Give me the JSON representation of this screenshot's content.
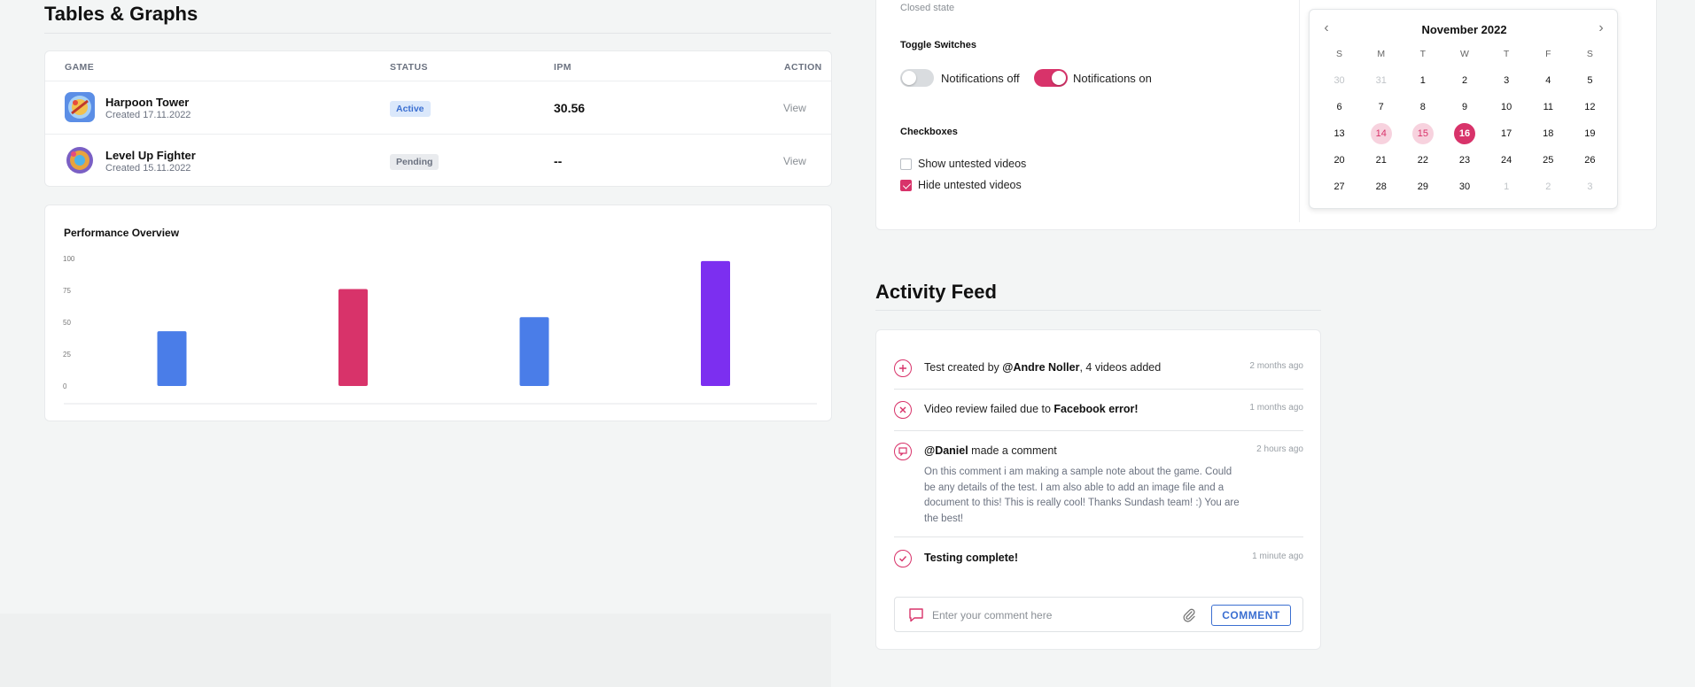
{
  "left": {
    "title": "Tables & Graphs",
    "table": {
      "headers": [
        "GAME",
        "STATUS",
        "IPM",
        "ACTION"
      ],
      "rows": [
        {
          "name": "Harpoon Tower",
          "created": "Created 17.11.2022",
          "status": "Active",
          "ipm": "30.56",
          "action": "View"
        },
        {
          "name": "Level Up Fighter",
          "created": "Created 15.11.2022",
          "status": "Pending",
          "ipm": "--",
          "action": "View"
        }
      ]
    },
    "performance": {
      "title": "Performance Overview"
    }
  },
  "chart_data": {
    "type": "bar",
    "title": "Performance Overview",
    "categories": [
      "",
      "",
      "",
      ""
    ],
    "values": [
      43,
      76,
      54,
      98
    ],
    "colors": [
      "#4a7de8",
      "#d8336a",
      "#4a7de8",
      "#7c2ff0"
    ],
    "yticks": [
      "100",
      "75",
      "50",
      "25",
      "0"
    ],
    "ylim": [
      0,
      100
    ],
    "grid": false
  },
  "controls": {
    "closed_state_label": "Closed state",
    "toggle_title": "Toggle Switches",
    "toggles": [
      {
        "label": "Notifications off",
        "on": false
      },
      {
        "label": "Notifications on",
        "on": true
      }
    ],
    "checkbox_title": "Checkboxes",
    "checkboxes": [
      {
        "label": "Show untested videos",
        "checked": false
      },
      {
        "label": "Hide untested videos",
        "checked": true
      }
    ]
  },
  "calendar": {
    "month": "November 2022",
    "dow": [
      "S",
      "M",
      "T",
      "W",
      "T",
      "F",
      "S"
    ],
    "weeks": [
      [
        "30",
        "31",
        "1",
        "2",
        "3",
        "4",
        "5"
      ],
      [
        "6",
        "7",
        "8",
        "9",
        "10",
        "11",
        "12"
      ],
      [
        "13",
        "14",
        "15",
        "16",
        "17",
        "18",
        "19"
      ],
      [
        "20",
        "21",
        "22",
        "23",
        "24",
        "25",
        "26"
      ],
      [
        "27",
        "28",
        "29",
        "30",
        "1",
        "2",
        "3"
      ]
    ],
    "muted": [
      "0-0",
      "0-1",
      "4-4",
      "4-5",
      "4-6"
    ],
    "range": [
      "2-1",
      "2-2"
    ],
    "selected": "2-3"
  },
  "feed": {
    "title": "Activity Feed",
    "items": [
      {
        "pre": "Test created by ",
        "bold": "@Andre Noller",
        "post": ", 4 videos added",
        "time": "2 months ago",
        "icon": "plus-icon"
      },
      {
        "pre": "Video review failed due to ",
        "bold": "Facebook error!",
        "post": "",
        "time": "1 months ago",
        "icon": "x-icon"
      },
      {
        "pre": "",
        "bold": "@Daniel",
        "post": " made a comment",
        "time": "2 hours ago",
        "icon": "comment-icon",
        "comment": "On this comment i am making a sample note about the game. Could be any details of the test. I am also able to add an image file and a document to this! This is really cool! Thanks Sundash team! :) You are the best!"
      },
      {
        "pre": "",
        "bold": "Testing complete!",
        "post": "",
        "time": "1 minute ago",
        "icon": "check-icon"
      }
    ],
    "comment_placeholder": "Enter your comment here",
    "comment_button": "COMMENT"
  }
}
